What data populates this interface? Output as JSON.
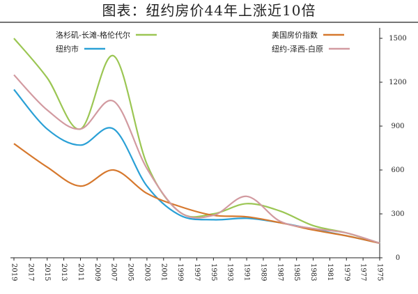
{
  "title": "图表：纽约房价44年上涨近10倍",
  "chart_data": {
    "type": "line",
    "title": "图表：纽约房价44年上涨近10倍",
    "xlabel": "",
    "ylabel": "",
    "x": [
      1975,
      1979,
      1983,
      1987,
      1991,
      1995,
      1999,
      2003,
      2007,
      2011,
      2015,
      2019
    ],
    "x_reversed": true,
    "x_tick_labels": [
      "2019",
      "2017",
      "2015",
      "2013",
      "2011",
      "2009",
      "2007",
      "2005",
      "2003",
      "2001",
      "1999",
      "1997",
      "1995",
      "1993",
      "1991",
      "1989",
      "1987",
      "1985",
      "1983",
      "1981",
      "1979",
      "1977",
      "1975"
    ],
    "ylim": [
      0,
      1500
    ],
    "y_ticks": [
      0,
      300,
      600,
      900,
      1200,
      1500
    ],
    "y_axis_position": "right",
    "grid": false,
    "legend_position": "top",
    "series": [
      {
        "name": "洛杉矶-长滩-格伦代尔",
        "color": "#9bc653",
        "values": [
          100,
          170,
          220,
          320,
          370,
          300,
          310,
          640,
          1380,
          880,
          1230,
          1500
        ]
      },
      {
        "name": "纽约市",
        "color": "#2aa0d6",
        "values": [
          100,
          150,
          195,
          240,
          270,
          260,
          290,
          490,
          880,
          770,
          880,
          1150
        ]
      },
      {
        "name": "美国房价指数",
        "color": "#d6782d",
        "values": [
          100,
          150,
          190,
          240,
          280,
          290,
          350,
          440,
          600,
          490,
          620,
          780
        ]
      },
      {
        "name": "纽约-泽西-白原",
        "color": "#d29aa0",
        "values": [
          100,
          170,
          200,
          250,
          420,
          290,
          310,
          610,
          1070,
          880,
          1010,
          1250
        ]
      }
    ]
  }
}
